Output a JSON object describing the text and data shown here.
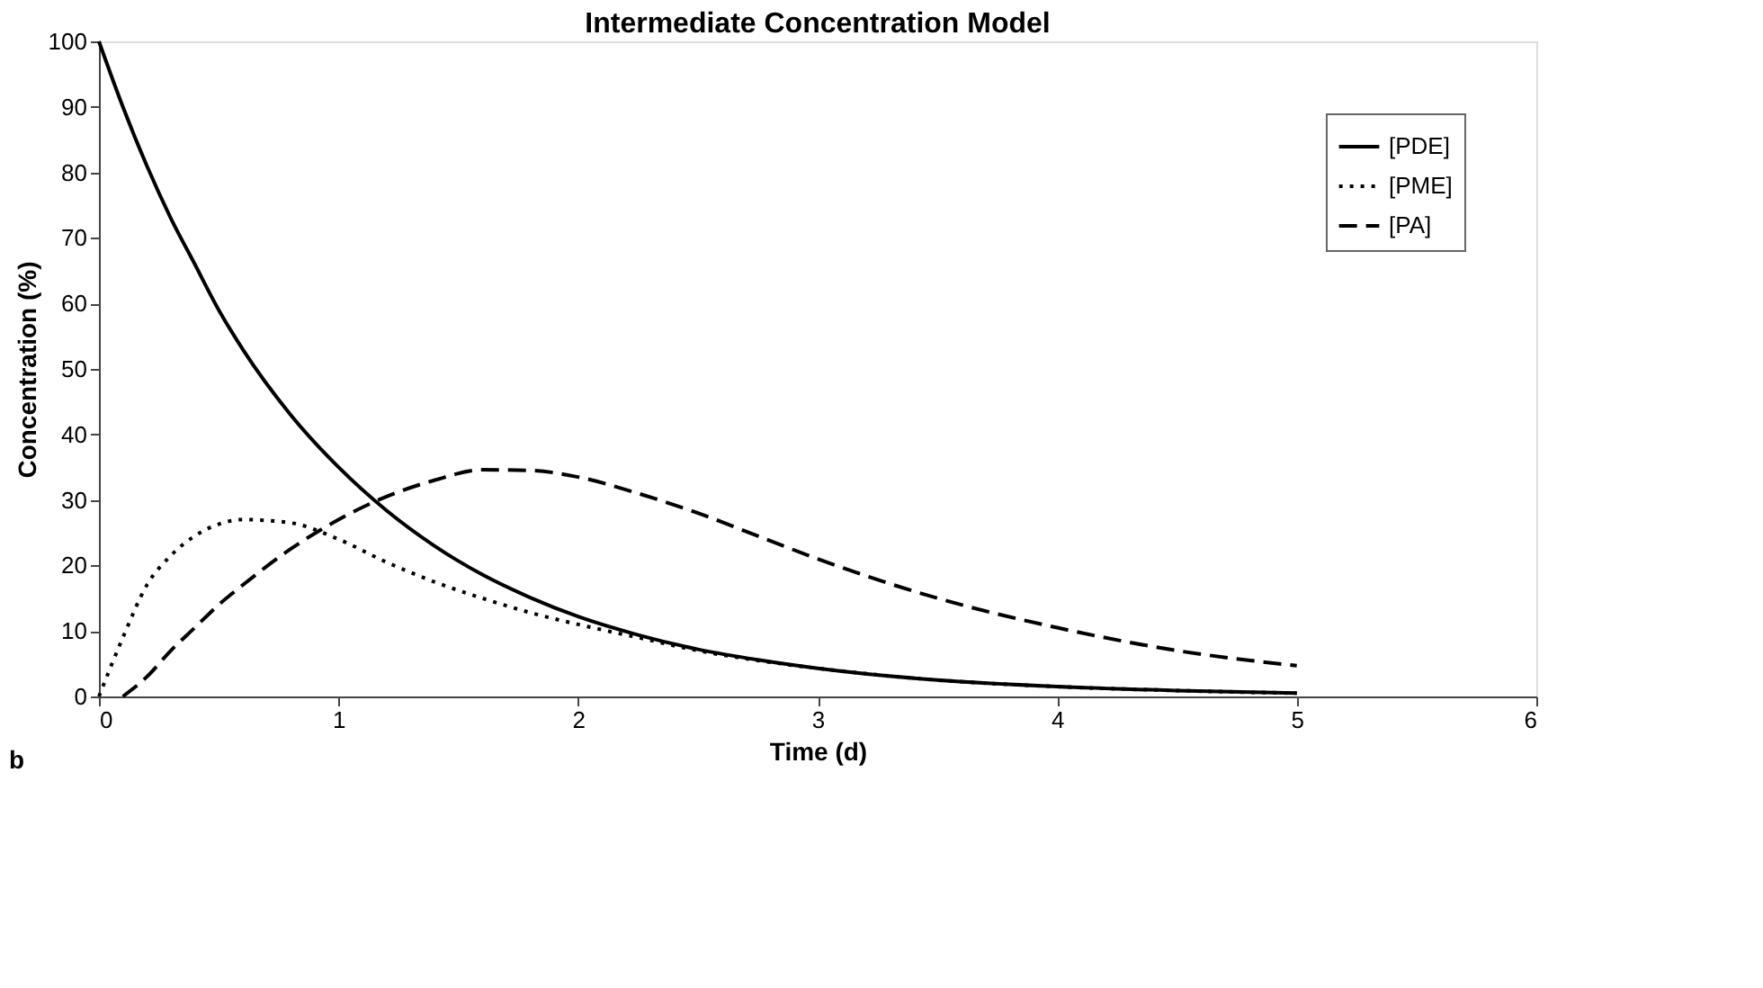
{
  "chart_data": {
    "type": "line",
    "title": "Intermediate Concentration Model",
    "xlabel": "Time (d)",
    "ylabel": "Concentration (%)",
    "annotations": [
      "b"
    ],
    "xlim": [
      0,
      6
    ],
    "xticks": [
      0,
      1,
      2,
      3,
      4,
      5,
      6
    ],
    "ylim": [
      0,
      100
    ],
    "yticks": [
      0,
      10,
      20,
      30,
      40,
      50,
      60,
      70,
      80,
      90,
      100
    ],
    "grid": false,
    "legend": "top right",
    "marker": "none",
    "series": [
      {
        "name": "[PDE]",
        "color": "#000000",
        "line_style": "solid",
        "x": [
          0,
          0.1,
          0.2,
          0.3,
          0.4,
          0.5,
          0.6,
          0.8,
          1,
          1.2,
          1.4,
          1.6,
          1.8,
          2,
          2.25,
          2.5,
          2.75,
          3,
          3.5,
          4,
          4.5,
          5
        ],
        "values": [
          100,
          90,
          81,
          73,
          66,
          59,
          53,
          43,
          35,
          28.4,
          23,
          18.6,
          15.1,
          12.2,
          9.4,
          7.2,
          5.6,
          4.3,
          2.5,
          1.5,
          0.9,
          0.5
        ]
      },
      {
        "name": "[PME]",
        "color": "#000000",
        "line_style": "dotted",
        "x": [
          0,
          0.1,
          0.2,
          0.3,
          0.4,
          0.5,
          0.6,
          0.8,
          1,
          1.2,
          1.4,
          1.6,
          1.8,
          2,
          2.25,
          2.5,
          2.75,
          3,
          3.5,
          4,
          4.5,
          5
        ],
        "values": [
          0,
          9,
          17,
          21.5,
          24.5,
          26.3,
          27,
          26.5,
          24,
          20.5,
          17.5,
          15,
          12.8,
          11,
          9,
          7,
          5.5,
          4.3,
          2.5,
          1.5,
          0.9,
          0.5
        ]
      },
      {
        "name": "[PA]",
        "color": "#000000",
        "line_style": "dashed",
        "x": [
          0.1,
          0.2,
          0.3,
          0.4,
          0.5,
          0.6,
          0.8,
          1,
          1.2,
          1.4,
          1.6,
          1.8,
          2,
          2.25,
          2.5,
          2.75,
          3,
          3.5,
          4,
          4.5,
          5
        ],
        "values": [
          0,
          3,
          7,
          10.5,
          14,
          17,
          22.5,
          27,
          30.5,
          33,
          34.6,
          34.5,
          33.5,
          31,
          28,
          24.5,
          21,
          15,
          10.5,
          7,
          4.7
        ]
      }
    ]
  }
}
